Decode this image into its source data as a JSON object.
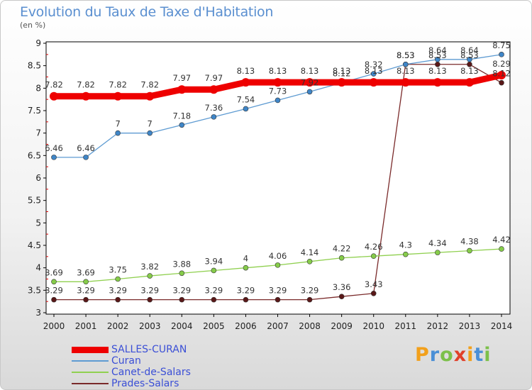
{
  "header": {
    "title": "Evolution du Taux de Taxe d'Habitation",
    "unit": "(en %)"
  },
  "brand": {
    "letters": [
      "P",
      "r",
      "o",
      "x",
      "i",
      "t",
      "i"
    ],
    "colors": [
      "#f2a01b",
      "#4a8fd6",
      "#7cc04a",
      "#e0402a",
      "#f2a01b",
      "#4a8fd6",
      "#7cc04a"
    ]
  },
  "chart_data": {
    "type": "line",
    "x": [
      "2000",
      "2001",
      "2002",
      "2003",
      "2004",
      "2005",
      "2006",
      "2007",
      "2008",
      "2009",
      "2010",
      "2011",
      "2012",
      "2013",
      "2014"
    ],
    "ylim": [
      3,
      9
    ],
    "yticks": [
      "3",
      "3.5",
      "4",
      "4.5",
      "5",
      "5.5",
      "6",
      "6.5",
      "7",
      "7.5",
      "8",
      "8.5",
      "9"
    ],
    "grid": false,
    "legend_position": "bottom-left",
    "series": [
      {
        "name": "SALLES-CURAN",
        "color": "#ee0000",
        "values": [
          7.82,
          7.82,
          7.82,
          7.82,
          7.97,
          7.97,
          8.13,
          8.13,
          8.13,
          8.13,
          8.13,
          8.13,
          8.13,
          8.13,
          8.29
        ],
        "labels": [
          "7.82",
          "7.82",
          "7.82",
          "7.82",
          "7.97",
          "7.97",
          "8.13",
          "8.13",
          "8.13",
          "8.13",
          "8.13",
          "8.13",
          "8.13",
          "8.13",
          "8.29"
        ]
      },
      {
        "name": "Curan",
        "color": "#5e9bd2",
        "values": [
          6.46,
          6.46,
          7,
          7,
          7.18,
          7.36,
          7.54,
          7.73,
          7.92,
          8.12,
          8.32,
          8.53,
          8.64,
          8.64,
          8.75
        ],
        "labels": [
          "6.46",
          "6.46",
          "7",
          "7",
          "7.18",
          "7.36",
          "7.54",
          "7.73",
          "7.92",
          "8.12",
          "8.32",
          "8.53",
          "8.64",
          "8.64",
          "8.75"
        ]
      },
      {
        "name": "Canet-de-Salars",
        "color": "#90d050",
        "values": [
          3.69,
          3.69,
          3.75,
          3.82,
          3.88,
          3.94,
          4,
          4.06,
          4.14,
          4.22,
          4.26,
          4.3,
          4.34,
          4.38,
          4.42
        ],
        "labels": [
          "3.69",
          "3.69",
          "3.75",
          "3.82",
          "3.88",
          "3.94",
          "4",
          "4.06",
          "4.14",
          "4.22",
          "4.26",
          "4.3",
          "4.34",
          "4.38",
          "4.42"
        ]
      },
      {
        "name": "Prades-Salars",
        "color": "#7a2a2a",
        "values": [
          3.29,
          3.29,
          3.29,
          3.29,
          3.29,
          3.29,
          3.29,
          3.29,
          3.29,
          3.36,
          3.43,
          8.53,
          8.53,
          8.53,
          8.12
        ],
        "labels": [
          "3.29",
          "3.29",
          "3.29",
          "3.29",
          "3.29",
          "3.29",
          "3.29",
          "3.29",
          "3.29",
          "3.36",
          "3.43",
          "8.53",
          "8.53",
          "8.53",
          "8.12"
        ]
      }
    ]
  }
}
